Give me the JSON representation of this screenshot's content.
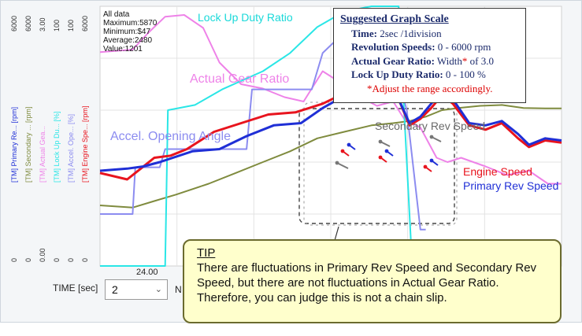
{
  "stats": {
    "label": "All data",
    "maximum": "Maximum:5870",
    "minimum": "Minimum:$47",
    "average": "Average:2480",
    "value": "Value:1201"
  },
  "scale_box": {
    "title": "Suggested Graph Scale",
    "time_label": "Time:",
    "time_value": "2sec /1division",
    "rev_label": "Revolution Speeds:",
    "rev_value": "0 - 6000 rpm",
    "gear_label": "Actual Gear Ratio:",
    "gear_value_pre": "Width",
    "gear_star": "*",
    "gear_value_post": "of 3.0",
    "lockup_label": "Lock Up Duty Ratio:",
    "lockup_value": "0 - 100 %",
    "note": "*Adjust the range accordingly."
  },
  "controls": {
    "time_label": "TIME [sec]",
    "time_value": "2",
    "n_label": "N",
    "x_tick": "24.00"
  },
  "tip": {
    "heading": "TIP",
    "body": "There are fluctuations in Primary Rev Speed and Secondary Rev Speed, but there are not fluctuations in Actual Gear Ratio. Therefore, you can judge this is not a chain slip."
  },
  "colors": {
    "primary": "#1f2fd6",
    "secondary": "#7f8b3e",
    "gear": "#ee82e8",
    "lockup": "#2ae6e6",
    "accel": "#8c8cf0",
    "engine": "#e8141e",
    "secondary_label": "#6a6a6a",
    "tip_bg": "#ffffcc"
  },
  "chart_data": {
    "type": "line",
    "x_tick_labels": [
      "24.00"
    ],
    "axis_columns": [
      {
        "name": "[TM] Primary Re... [rpm]",
        "top": "6000",
        "bottom": "0",
        "color": "#1f2fd6"
      },
      {
        "name": "[TM] Secondary ... [rpm]",
        "top": "6000",
        "bottom": "0",
        "color": "#7f8b3e"
      },
      {
        "name": "[TM] Actual Gea...",
        "top": "3.00",
        "bottom": "0.00",
        "color": "#ee82e8"
      },
      {
        "name": "[TM] Lock Up Du... [%]",
        "top": "100",
        "bottom": "0",
        "color": "#2ae6e6"
      },
      {
        "name": "[TM] Accel. Ope... [%]",
        "top": "100",
        "bottom": "0",
        "color": "#8c8cf0"
      },
      {
        "name": "[TM] Engine Spe... [rpm]",
        "top": "6000",
        "bottom": "0",
        "color": "#e8141e"
      }
    ],
    "series": [
      {
        "name": "Lock Up Duty Ratio",
        "color": "#2ae6e6",
        "points": [
          [
            0,
            0
          ],
          [
            2.4,
            0
          ],
          [
            2.5,
            60
          ],
          [
            3.5,
            62
          ],
          [
            4.5,
            68
          ],
          [
            6,
            75
          ],
          [
            7,
            82
          ],
          [
            8,
            92
          ],
          [
            9,
            98
          ],
          [
            10,
            100
          ],
          [
            11,
            100
          ],
          [
            11.5,
            0
          ],
          [
            12,
            0
          ]
        ]
      },
      {
        "name": "Actual Gear Ratio",
        "color": "#ee82e8",
        "points": [
          [
            0,
            2.47
          ],
          [
            1.2,
            2.5
          ],
          [
            1.8,
            2.7
          ],
          [
            2.4,
            2.88
          ],
          [
            3.1,
            2.9
          ],
          [
            3.8,
            2.75
          ],
          [
            4.4,
            2.35
          ],
          [
            5.2,
            2.1
          ],
          [
            6,
            2.05
          ],
          [
            6.8,
            1.95
          ],
          [
            7.5,
            1.9
          ],
          [
            8.2,
            2.25
          ],
          [
            8.7,
            2.15
          ],
          [
            9.2,
            2.2
          ],
          [
            9.6,
            1.95
          ],
          [
            10.2,
            1.85
          ],
          [
            10.8,
            1.9
          ],
          [
            11.2,
            1.7
          ],
          [
            11.8,
            1.6
          ],
          [
            12.4,
            1.25
          ],
          [
            12.8,
            1.2
          ],
          [
            13.3,
            1.25
          ],
          [
            14.2,
            1.15
          ],
          [
            15,
            1.05
          ],
          [
            15.8,
            1.1
          ],
          [
            16.5,
            0.95
          ],
          [
            17,
            0.95
          ]
        ]
      },
      {
        "name": "Accel. Opening Angle",
        "color": "#8c8cf0",
        "points": [
          [
            0,
            20
          ],
          [
            1.2,
            20
          ],
          [
            1.3,
            38
          ],
          [
            2.2,
            38
          ],
          [
            2.4,
            45
          ],
          [
            5.4,
            45
          ],
          [
            5.6,
            68
          ],
          [
            7.8,
            68
          ],
          [
            8.2,
            82
          ],
          [
            8.8,
            88
          ],
          [
            9.2,
            88
          ],
          [
            10.6,
            88
          ],
          [
            11.3,
            60
          ],
          [
            11.8,
            14
          ],
          [
            12,
            14
          ]
        ]
      },
      {
        "name": "Engine Speed",
        "color": "#e8141e",
        "points": [
          [
            0,
            2150
          ],
          [
            1,
            2000
          ],
          [
            1.5,
            2250
          ],
          [
            2,
            2500
          ],
          [
            2.6,
            2550
          ],
          [
            3.2,
            2700
          ],
          [
            4.2,
            3100
          ],
          [
            5.2,
            3300
          ],
          [
            6.2,
            3500
          ],
          [
            7.2,
            3550
          ],
          [
            8.2,
            3750
          ],
          [
            9.2,
            4050
          ],
          [
            10,
            4350
          ],
          [
            10.6,
            4100
          ],
          [
            11,
            3850
          ],
          [
            11.4,
            3250
          ],
          [
            11.8,
            3400
          ],
          [
            12.2,
            3650
          ],
          [
            12.6,
            3950
          ],
          [
            13,
            3750
          ],
          [
            13.6,
            3250
          ],
          [
            14.2,
            3150
          ],
          [
            14.8,
            3300
          ],
          [
            15.4,
            2950
          ],
          [
            15.8,
            2750
          ],
          [
            16.4,
            2900
          ],
          [
            17,
            2850
          ]
        ]
      },
      {
        "name": "Primary Rev Speed",
        "color": "#1f2fd6",
        "points": [
          [
            0,
            2200
          ],
          [
            1,
            2250
          ],
          [
            1.6,
            2300
          ],
          [
            2.2,
            2400
          ],
          [
            3.4,
            2650
          ],
          [
            4.4,
            2700
          ],
          [
            5.4,
            3000
          ],
          [
            6.4,
            3250
          ],
          [
            7.4,
            3300
          ],
          [
            8.2,
            3650
          ],
          [
            9.2,
            4000
          ],
          [
            10,
            4350
          ],
          [
            10.6,
            4150
          ],
          [
            11,
            3850
          ],
          [
            11.4,
            3300
          ],
          [
            11.8,
            3450
          ],
          [
            12.2,
            3750
          ],
          [
            12.6,
            4050
          ],
          [
            13,
            3850
          ],
          [
            13.6,
            3300
          ],
          [
            14.2,
            3250
          ],
          [
            14.8,
            3350
          ],
          [
            15.4,
            3050
          ],
          [
            15.8,
            2800
          ],
          [
            16.4,
            2950
          ],
          [
            17,
            2900
          ]
        ]
      },
      {
        "name": "Secondary Rev Speed",
        "color": "#7f8b3e",
        "points": [
          [
            0,
            1400
          ],
          [
            1.2,
            1350
          ],
          [
            2,
            1500
          ],
          [
            2.8,
            1650
          ],
          [
            4,
            1900
          ],
          [
            5,
            2150
          ],
          [
            6,
            2400
          ],
          [
            7,
            2650
          ],
          [
            8,
            2950
          ],
          [
            9,
            3100
          ],
          [
            10,
            3250
          ],
          [
            10.8,
            3300
          ],
          [
            11.4,
            3350
          ],
          [
            12,
            3450
          ],
          [
            12.6,
            3600
          ],
          [
            13.2,
            3650
          ],
          [
            14,
            3700
          ],
          [
            14.8,
            3720
          ],
          [
            15.6,
            3650
          ],
          [
            16.4,
            3640
          ],
          [
            17,
            3640
          ]
        ]
      }
    ]
  }
}
